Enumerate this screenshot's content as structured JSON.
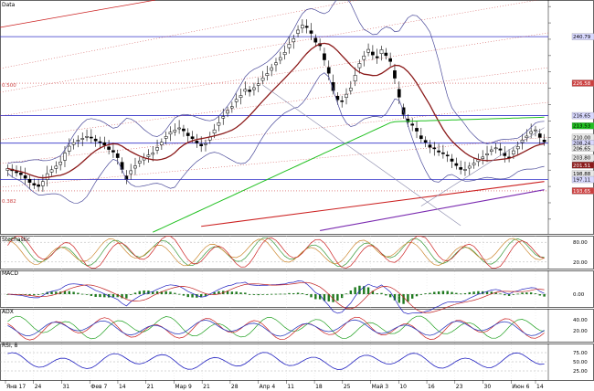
{
  "window": {
    "panes": [
      "Data",
      "Stochastic",
      "MACD",
      "ADX",
      "RSI, 8"
    ]
  },
  "fib_labels": {
    "upper": "0.500",
    "lower": "0.382"
  },
  "colors": {
    "background": "#ffffff",
    "grid_blue": "#3030c8",
    "fib_red_dotted": "#cc4040",
    "bollinger": "#4a4a9a",
    "ma_dark_red": "#8b1a1a",
    "ma_green": "#20c020",
    "trend_red": "#cc2020",
    "trend_purple": "#7a2ab0",
    "candle_up": "#ffffff",
    "candle_down": "#000000",
    "macd_hist": "#1f7a1f",
    "macd_line": "#2020c0",
    "macd_signal": "#c02020",
    "stoch_k": "#cc2020",
    "stoch_d": "#3a9a3a",
    "stoch_slow": "#cc8830",
    "adx_line": "#3040c0",
    "di_plus": "#20a020",
    "di_minus": "#cc2020",
    "rsi_line": "#2020c0"
  },
  "chart_data": [
    {
      "type": "candlestick",
      "pane": "Data",
      "ylim": [
        180.5,
        252
      ],
      "x_dates": [
        "Янв 17",
        "24",
        "31",
        "Фев 7",
        "14",
        "21",
        "Мар 9",
        "21",
        "28",
        "Апр 4",
        "11",
        "18",
        "25",
        "Май 3",
        "10",
        "16",
        "23",
        "30",
        "Июн 6",
        "14"
      ],
      "price_levels": [
        "240.79",
        "226.58",
        "216.65",
        "213.53",
        "210.00",
        "208.24",
        "206.65",
        "203.80",
        "201.51",
        "198.88",
        "197.11",
        "193.65"
      ],
      "horizontal_lines": [
        240.79,
        216.65,
        208.24,
        197.11
      ],
      "fib_levels": [
        226.58,
        193.65
      ],
      "closes": [
        200.5,
        199.8,
        199.2,
        198.6,
        197.5,
        196.2,
        195.4,
        195.0,
        196.5,
        198.9,
        200.1,
        201.2,
        202.5,
        205.2,
        207.3,
        208.4,
        209.1,
        209.7,
        210.3,
        209.8,
        208.9,
        208.5,
        207.6,
        206.3,
        205.5,
        203.8,
        200.2,
        197.2,
        199.8,
        201.3,
        202.8,
        203.7,
        204.6,
        205.2,
        206.9,
        208.5,
        210.3,
        211.6,
        212.2,
        212.9,
        212.0,
        210.5,
        209.6,
        208.3,
        207.4,
        208.1,
        210.2,
        212.3,
        214.5,
        216.4,
        218.2,
        219.4,
        221.6,
        222.8,
        224.7,
        224.0,
        225.2,
        226.4,
        228.2,
        229.5,
        231.3,
        232.8,
        234.4,
        236.0,
        238.5,
        240.2,
        242.8,
        244.3,
        243.6,
        241.8,
        239.1,
        238.0,
        233.7,
        229.6,
        224.3,
        221.5,
        220.9,
        223.2,
        225.1,
        229.0,
        232.6,
        234.9,
        236.9,
        235.2,
        234.3,
        236.8,
        235.0,
        233.2,
        228.1,
        222.3,
        217.0,
        214.7,
        213.7,
        211.9,
        209.6,
        208.5,
        207.0,
        206.5,
        205.5,
        205.0,
        204.3,
        202.7,
        201.4,
        200.2,
        200.2,
        201.2,
        202.1,
        203.2,
        204.0,
        205.0,
        206.2,
        206.8,
        206.1,
        204.4,
        203.6,
        205.9,
        207.2,
        209.2,
        210.4,
        211.8,
        212.3,
        210.0,
        208.6
      ],
      "opens": [
        199.9,
        200.3,
        199.6,
        199.1,
        198.3,
        197.2,
        195.9,
        195.5,
        195.2,
        197.1,
        199.4,
        200.5,
        201.7,
        203.0,
        205.8,
        207.8,
        208.8,
        209.4,
        210.0,
        210.1,
        209.5,
        208.7,
        208.4,
        207.1,
        206.0,
        205.0,
        202.4,
        198.2,
        198.9,
        200.6,
        202.1,
        203.1,
        204.1,
        204.8,
        206.1,
        207.7,
        209.7,
        211.0,
        211.7,
        212.6,
        212.6,
        211.3,
        210.2,
        208.9,
        207.9,
        207.8,
        209.2,
        211.3,
        213.7,
        215.9,
        217.4,
        219.0,
        220.9,
        222.2,
        224.1,
        224.5,
        224.6,
        225.9,
        227.4,
        228.9,
        230.5,
        232.2,
        233.6,
        235.3,
        237.4,
        239.2,
        241.8,
        243.4,
        244.0,
        242.6,
        240.3,
        238.7,
        235.6,
        231.4,
        226.8,
        222.6,
        221.2,
        222.2,
        224.3,
        227.2,
        231.3,
        233.8,
        236.0,
        236.1,
        234.7,
        235.6,
        235.8,
        234.1,
        230.4,
        224.7,
        219.1,
        215.6,
        214.1,
        212.8,
        210.5,
        209.1,
        207.7,
        206.8,
        205.9,
        205.3,
        204.6,
        203.4,
        202.0,
        200.8,
        200.0,
        200.6,
        201.6,
        202.6,
        203.5,
        204.6,
        205.7,
        206.6,
        206.5,
        205.2,
        204.0,
        204.9,
        206.5,
        208.4,
        209.9,
        211.2,
        212.1,
        211.1,
        209.2
      ],
      "series": [
        {
          "name": "MA",
          "role": "ma_dark_red"
        },
        {
          "name": "MA",
          "role": "ma_green"
        },
        {
          "name": "Bollinger",
          "role": "bollinger"
        }
      ]
    },
    {
      "type": "line",
      "pane": "Stochastic",
      "ylim": [
        0,
        100
      ],
      "levels": [
        "80.00",
        "20.00"
      ],
      "right_labels": [
        "80.00",
        "20.00"
      ]
    },
    {
      "type": "bar",
      "pane": "MACD",
      "right_labels": [
        "0.00"
      ]
    },
    {
      "type": "line",
      "pane": "ADX",
      "right_labels": [
        "40.00",
        "20.00"
      ]
    },
    {
      "type": "line",
      "pane": "RSI, 8",
      "ylim": [
        0,
        100
      ],
      "right_labels": [
        "75.00",
        "50.00",
        "25.00"
      ]
    }
  ]
}
